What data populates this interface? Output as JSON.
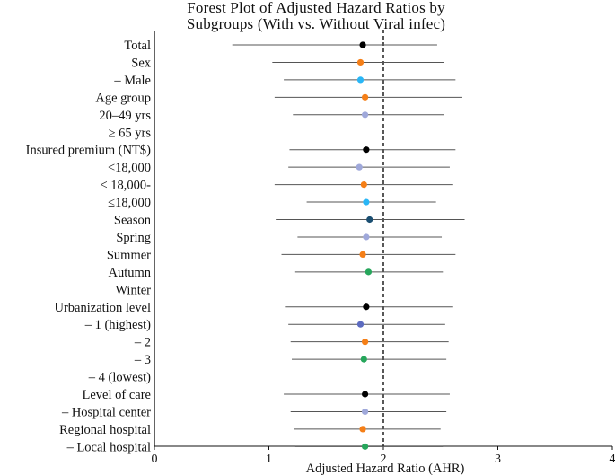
{
  "chart_data": {
    "type": "forest",
    "title_lines": [
      "Forest Plot of Adjusted Hazard Ratios by",
      "Subgroups (With vs. Without Viral infec)"
    ],
    "xlabel": "Adjusted Hazard Ratio (AHR)",
    "xlim": [
      0,
      4
    ],
    "xticks": [
      0,
      1,
      2,
      3,
      4
    ],
    "reference_line": 2,
    "rows": [
      {
        "label": "Total",
        "ahr": 1.82,
        "lo": 0.68,
        "hi": 2.47,
        "color": "#000000"
      },
      {
        "label": "Sex",
        "ahr": 1.8,
        "lo": 1.03,
        "hi": 2.53,
        "color": "#f57f17"
      },
      {
        "label": "– Male",
        "ahr": 1.8,
        "lo": 1.13,
        "hi": 2.63,
        "color": "#29b6f6"
      },
      {
        "label": "Age group",
        "ahr": 1.84,
        "lo": 1.05,
        "hi": 2.69,
        "color": "#f57f17"
      },
      {
        "label": "20–49 yrs",
        "ahr": 1.84,
        "lo": 1.21,
        "hi": 2.53,
        "color": "#9fa8da"
      },
      {
        "label": "≥ 65 yrs",
        "ahr": null,
        "lo": null,
        "hi": null,
        "color": null
      },
      {
        "label": "Insured premium  (NT$)",
        "ahr": 1.85,
        "lo": 1.18,
        "hi": 2.63,
        "color": "#000000"
      },
      {
        "label": "<18,000",
        "ahr": 1.79,
        "lo": 1.17,
        "hi": 2.58,
        "color": "#9fa8da"
      },
      {
        "label": "< 18,000-",
        "ahr": 1.83,
        "lo": 1.05,
        "hi": 2.61,
        "color": "#f57f17"
      },
      {
        "label": "≤18,000",
        "ahr": 1.85,
        "lo": 1.33,
        "hi": 2.46,
        "color": "#29b6f6"
      },
      {
        "label": "Season",
        "ahr": 1.88,
        "lo": 1.06,
        "hi": 2.71,
        "color": "#1b4f72"
      },
      {
        "label": "Spring",
        "ahr": 1.85,
        "lo": 1.25,
        "hi": 2.51,
        "color": "#9fa8da"
      },
      {
        "label": "Summer",
        "ahr": 1.82,
        "lo": 1.11,
        "hi": 2.63,
        "color": "#f57f17"
      },
      {
        "label": "Autumn",
        "ahr": 1.87,
        "lo": 1.23,
        "hi": 2.52,
        "color": "#26a65b"
      },
      {
        "label": "Winter",
        "ahr": null,
        "lo": null,
        "hi": null,
        "color": null
      },
      {
        "label": "Urbanization level",
        "ahr": 1.85,
        "lo": 1.14,
        "hi": 2.61,
        "color": "#000000"
      },
      {
        "label": "– 1 (highest)",
        "ahr": 1.8,
        "lo": 1.17,
        "hi": 2.54,
        "color": "#5c6bc0"
      },
      {
        "label": "– 2",
        "ahr": 1.84,
        "lo": 1.19,
        "hi": 2.57,
        "color": "#f57f17"
      },
      {
        "label": "– 3",
        "ahr": 1.83,
        "lo": 1.2,
        "hi": 2.55,
        "color": "#26a65b"
      },
      {
        "label": "– 4 (lowest)",
        "ahr": null,
        "lo": null,
        "hi": null,
        "color": null
      },
      {
        "label": "Level of care",
        "ahr": 1.84,
        "lo": 1.13,
        "hi": 2.58,
        "color": "#000000"
      },
      {
        "label": "– Hospital center",
        "ahr": 1.84,
        "lo": 1.19,
        "hi": 2.55,
        "color": "#9fa8da"
      },
      {
        "label": "Regional hospital",
        "ahr": 1.82,
        "lo": 1.22,
        "hi": 2.5,
        "color": "#f57f17"
      },
      {
        "label": "– Local hospital",
        "ahr": 1.84,
        "lo": 1.23,
        "hi": 2.52,
        "color": "#26a65b"
      }
    ]
  }
}
